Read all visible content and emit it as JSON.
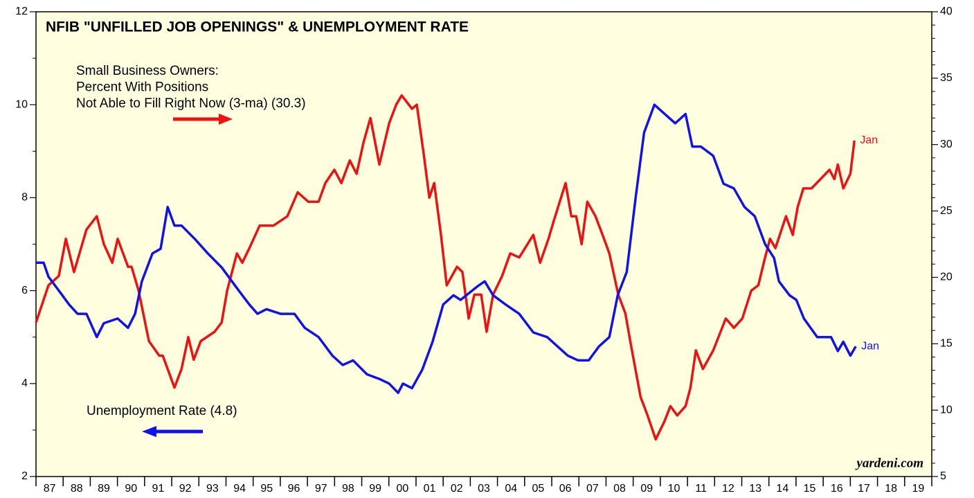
{
  "chart_data": {
    "type": "line",
    "title": "NFIB \"UNFILLED JOB OPENINGS\" & UNEMPLOYMENT RATE",
    "source": "yardeni.com",
    "xlim": [
      1987,
      2020
    ],
    "xticks": [
      {
        "value": 1987.5,
        "label": "87"
      },
      {
        "value": 1988.5,
        "label": "88"
      },
      {
        "value": 1989.5,
        "label": "89"
      },
      {
        "value": 1990.5,
        "label": "90"
      },
      {
        "value": 1991.5,
        "label": "91"
      },
      {
        "value": 1992.5,
        "label": "92"
      },
      {
        "value": 1993.5,
        "label": "93"
      },
      {
        "value": 1994.5,
        "label": "94"
      },
      {
        "value": 1995.5,
        "label": "95"
      },
      {
        "value": 1996.5,
        "label": "96"
      },
      {
        "value": 1997.5,
        "label": "97"
      },
      {
        "value": 1998.5,
        "label": "98"
      },
      {
        "value": 1999.5,
        "label": "99"
      },
      {
        "value": 2000.5,
        "label": "00"
      },
      {
        "value": 2001.5,
        "label": "01"
      },
      {
        "value": 2002.5,
        "label": "02"
      },
      {
        "value": 2003.5,
        "label": "03"
      },
      {
        "value": 2004.5,
        "label": "04"
      },
      {
        "value": 2005.5,
        "label": "05"
      },
      {
        "value": 2006.5,
        "label": "06"
      },
      {
        "value": 2007.5,
        "label": "07"
      },
      {
        "value": 2008.5,
        "label": "08"
      },
      {
        "value": 2009.5,
        "label": "09"
      },
      {
        "value": 2010.5,
        "label": "10"
      },
      {
        "value": 2011.5,
        "label": "11"
      },
      {
        "value": 2012.5,
        "label": "12"
      },
      {
        "value": 2013.5,
        "label": "13"
      },
      {
        "value": 2014.5,
        "label": "14"
      },
      {
        "value": 2015.5,
        "label": "15"
      },
      {
        "value": 2016.5,
        "label": "16"
      },
      {
        "value": 2017.5,
        "label": "17"
      },
      {
        "value": 2018.5,
        "label": "18"
      },
      {
        "value": 2019.5,
        "label": "19"
      }
    ],
    "ylim": [
      2,
      12
    ],
    "yticks": [
      2,
      4,
      6,
      8,
      10,
      12
    ],
    "yminorticks": [
      3,
      5,
      7,
      9,
      11
    ],
    "y2lim": [
      5,
      40
    ],
    "y2ticks": [
      5,
      10,
      15,
      20,
      25,
      30,
      35,
      40
    ],
    "y2minorticks": [
      6,
      7,
      8,
      9,
      11,
      12,
      13,
      14,
      16,
      17,
      18,
      19,
      21,
      22,
      23,
      24,
      26,
      27,
      28,
      29,
      31,
      32,
      33,
      34,
      36,
      37,
      38,
      39
    ],
    "series": [
      {
        "label_lines": [
          "Small Business Owners:",
          "Percent With Positions",
          "Not Able to Fill Right Now (3-ma) (30.3)"
        ],
        "end_label": "Jan",
        "color": "#ee1111",
        "axis": "y2",
        "x": [
          1987.0,
          1987.46,
          1987.84,
          1988.1,
          1988.4,
          1988.86,
          1989.24,
          1989.5,
          1989.81,
          1990.01,
          1990.39,
          1990.52,
          1990.78,
          1991.16,
          1991.54,
          1991.67,
          1992.1,
          1992.36,
          1992.61,
          1992.81,
          1993.07,
          1993.58,
          1993.84,
          1994.04,
          1994.4,
          1994.6,
          1994.86,
          1995.24,
          1995.75,
          1996.26,
          1996.64,
          1997.03,
          1997.41,
          1997.66,
          1997.99,
          1998.25,
          1998.56,
          1998.81,
          1999.07,
          1999.32,
          1999.65,
          2000.01,
          2000.27,
          2000.47,
          2000.85,
          2001.03,
          2001.29,
          2001.49,
          2001.67,
          2001.92,
          2002.13,
          2002.51,
          2002.71,
          2002.94,
          2003.15,
          2003.4,
          2003.6,
          2003.84,
          2004.17,
          2004.47,
          2004.8,
          2005.32,
          2005.57,
          2005.88,
          2006.08,
          2006.51,
          2006.72,
          2006.9,
          2007.1,
          2007.31,
          2007.61,
          2007.87,
          2008.12,
          2008.45,
          2008.71,
          2008.89,
          2009.27,
          2009.53,
          2009.83,
          2010.16,
          2010.37,
          2010.62,
          2010.93,
          2011.11,
          2011.31,
          2011.57,
          2011.95,
          2012.41,
          2012.71,
          2013.02,
          2013.35,
          2013.61,
          2013.86,
          2014.04,
          2014.24,
          2014.63,
          2014.88,
          2015.06,
          2015.27,
          2015.57,
          2015.9,
          2016.23,
          2016.41,
          2016.54,
          2016.74,
          2017.0,
          2017.15
        ],
        "values": [
          16.6,
          19.4,
          20.1,
          22.9,
          20.4,
          23.6,
          24.6,
          22.5,
          21.1,
          22.9,
          20.8,
          20.8,
          19.0,
          15.2,
          14.1,
          14.1,
          11.7,
          13.1,
          15.5,
          13.8,
          15.2,
          15.9,
          16.6,
          19.0,
          21.8,
          21.1,
          22.2,
          23.9,
          23.9,
          24.6,
          26.4,
          25.7,
          25.7,
          27.1,
          28.1,
          27.1,
          28.8,
          27.8,
          30.2,
          32.0,
          28.5,
          31.6,
          33.0,
          33.7,
          32.7,
          33.0,
          29.2,
          26.0,
          27.1,
          23.2,
          19.4,
          20.8,
          20.4,
          16.9,
          18.7,
          18.7,
          15.9,
          18.7,
          20.1,
          21.8,
          21.5,
          23.2,
          21.1,
          22.9,
          24.3,
          27.1,
          24.6,
          24.6,
          22.5,
          25.7,
          24.6,
          23.2,
          21.8,
          18.7,
          17.3,
          15.2,
          11.0,
          9.6,
          7.8,
          9.2,
          10.3,
          9.6,
          10.3,
          11.7,
          14.5,
          13.1,
          14.5,
          16.9,
          16.2,
          16.9,
          19.0,
          19.4,
          21.5,
          22.9,
          22.2,
          24.6,
          23.2,
          25.3,
          26.7,
          26.7,
          27.4,
          28.1,
          27.4,
          28.5,
          26.7,
          27.8,
          30.3
        ]
      },
      {
        "label_lines": [
          "Unemployment Rate (4.8)"
        ],
        "end_label": "Jan",
        "color": "#1111ee",
        "axis": "y",
        "x": [
          1987.0,
          1987.28,
          1987.46,
          1987.97,
          1988.22,
          1988.53,
          1988.86,
          1989.24,
          1989.5,
          1990.01,
          1990.39,
          1990.65,
          1990.9,
          1991.29,
          1991.59,
          1991.85,
          1992.1,
          1992.36,
          1992.87,
          1993.33,
          1993.84,
          1994.47,
          1994.86,
          1995.16,
          1995.49,
          1996.01,
          1996.52,
          1996.9,
          1997.41,
          1997.92,
          1998.3,
          1998.68,
          1999.19,
          1999.65,
          2000.01,
          2000.34,
          2000.52,
          2000.85,
          2001.23,
          2001.61,
          2002.0,
          2002.38,
          2002.64,
          2003.28,
          2003.53,
          2003.84,
          2004.3,
          2004.8,
          2005.32,
          2005.83,
          2006.21,
          2006.59,
          2006.97,
          2007.36,
          2007.74,
          2008.12,
          2008.43,
          2008.76,
          2009.09,
          2009.4,
          2009.78,
          2010.16,
          2010.55,
          2010.93,
          2011.18,
          2011.49,
          2011.95,
          2012.33,
          2012.71,
          2013.1,
          2013.48,
          2013.86,
          2014.19,
          2014.37,
          2014.76,
          2015.01,
          2015.29,
          2015.78,
          2016.29,
          2016.54,
          2016.74,
          2017.0,
          2017.2
        ],
        "values": [
          6.6,
          6.6,
          6.3,
          5.9,
          5.7,
          5.5,
          5.5,
          5.0,
          5.3,
          5.4,
          5.2,
          5.5,
          6.2,
          6.8,
          6.9,
          7.8,
          7.4,
          7.4,
          7.1,
          6.8,
          6.5,
          6.0,
          5.7,
          5.5,
          5.6,
          5.5,
          5.5,
          5.2,
          5.0,
          4.6,
          4.4,
          4.5,
          4.2,
          4.1,
          4.0,
          3.8,
          4.0,
          3.9,
          4.3,
          4.9,
          5.7,
          5.9,
          5.8,
          6.1,
          6.2,
          5.9,
          5.7,
          5.5,
          5.1,
          5.0,
          4.8,
          4.6,
          4.5,
          4.5,
          4.8,
          5.0,
          5.9,
          6.4,
          8.0,
          9.4,
          10.0,
          9.8,
          9.6,
          9.8,
          9.1,
          9.1,
          8.9,
          8.3,
          8.2,
          7.8,
          7.6,
          7.0,
          6.7,
          6.2,
          5.9,
          5.8,
          5.4,
          5.0,
          5.0,
          4.7,
          4.9,
          4.6,
          4.8
        ]
      }
    ]
  }
}
